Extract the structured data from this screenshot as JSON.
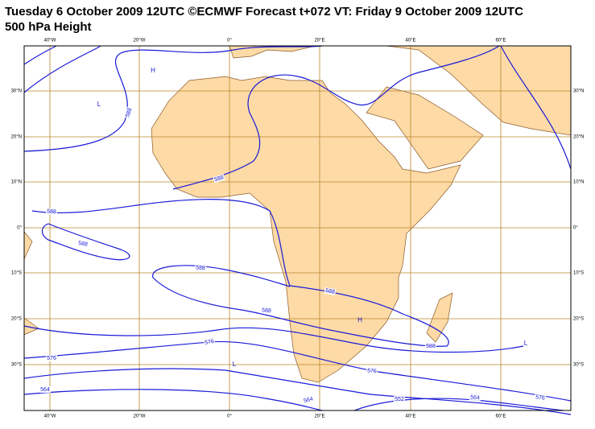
{
  "header": {
    "title_line1": "Tuesday 6 October 2009 12UTC ©ECMWF Forecast t+072 VT: Friday 9 October 2009 12UTC",
    "title_line2": "500 hPa Height"
  },
  "map": {
    "lon_labels": [
      "40°W",
      "20°W",
      "0°",
      "20°E",
      "40°E",
      "60°E"
    ],
    "lat_labels": [
      "30°N",
      "20°N",
      "10°N",
      "0°",
      "10°S",
      "20°S",
      "30°S"
    ],
    "contour_labels": [
      "588",
      "588",
      "588",
      "588",
      "588",
      "588",
      "588",
      "588",
      "576",
      "576",
      "576",
      "564",
      "564",
      "564",
      "576",
      "552"
    ],
    "centers": [
      "H",
      "H",
      "L",
      "L",
      "L"
    ]
  }
}
